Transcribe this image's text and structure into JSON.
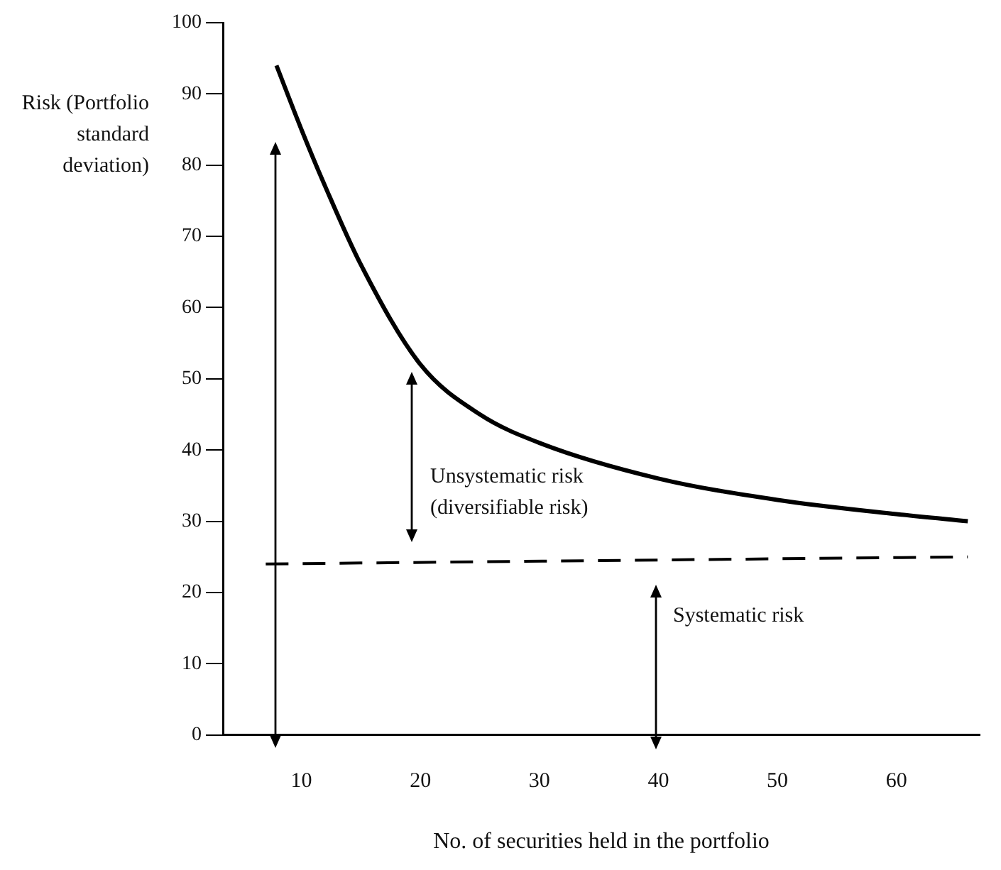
{
  "chart_data": {
    "type": "line",
    "xlabel": "No. of securities held in the portfolio",
    "ylabel": "Risk (Portfolio standard deviation)",
    "xlim": [
      3.4,
      67
    ],
    "xticks": [
      10,
      20,
      30,
      40,
      50,
      60
    ],
    "ylim": [
      0,
      100
    ],
    "yticks": [
      0,
      10,
      20,
      30,
      40,
      50,
      60,
      70,
      80,
      90,
      100
    ],
    "grid": false,
    "legend": false,
    "series": [
      {
        "color": "#000000",
        "line_style": "solid",
        "x": [
          7.9,
          10,
          12,
          15,
          20,
          25,
          30,
          40,
          50,
          60,
          66
        ],
        "values": [
          94,
          85,
          77,
          66,
          52,
          45,
          41,
          36,
          33,
          31,
          30
        ]
      },
      {
        "color": "#000000",
        "line_style": "dashed",
        "x": [
          7,
          66
        ],
        "values": [
          24,
          25
        ]
      }
    ],
    "annotations": [
      "Unsystematic risk (diversifiable risk)",
      "Systematic risk"
    ]
  }
}
